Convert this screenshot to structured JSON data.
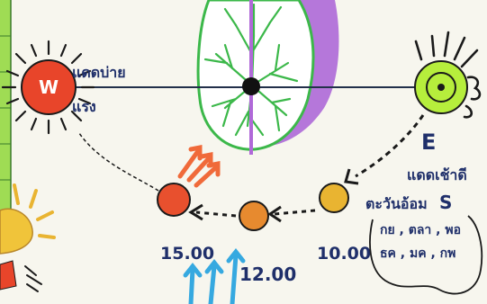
{
  "labels": {
    "west_letter": "W",
    "west_note_line1": "แดดบ่าย",
    "west_note_line2": "แรง",
    "east_letter": "E",
    "east_note": "แดดเช้าดี",
    "south_letter": "S",
    "south_note_title": "ตะวันอ้อม",
    "south_note_months_line1": "กย , ตลา , พอ",
    "south_note_months_line2": "ธค , มค , กพ"
  },
  "times": {
    "t_morning": "10.00",
    "t_noon": "12.00",
    "t_afternoon": "15.00"
  },
  "colors": {
    "west_sun": "#e8452a",
    "east_sun": "#b6ee3c",
    "tree_green": "#3cb84a",
    "tree_shadow": "#a960d6",
    "noon_sun": "#e78a2f",
    "morning_sun": "#e9b431",
    "afternoon_sun": "#e8502e",
    "heat_arrows": "#f06a3a",
    "cool_arrows": "#36a9e0",
    "edge_green": "#8bd34a",
    "axis_line": "#22304a"
  }
}
